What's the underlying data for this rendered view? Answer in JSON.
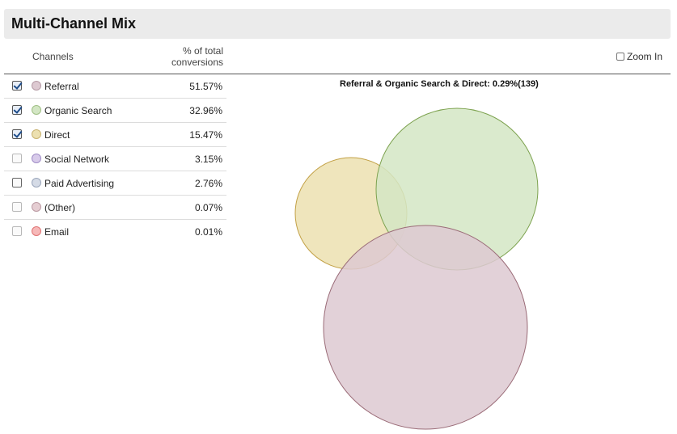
{
  "title": "Multi-Channel Mix",
  "header": {
    "channels_label": "Channels",
    "pct_label_line1": "% of total",
    "pct_label_line2": "conversions",
    "zoom_label": "Zoom In"
  },
  "rows": [
    {
      "name": "Referral",
      "pct": "51.57%",
      "checked": true,
      "color": "#ddc9d1",
      "border": "#b59aa5"
    },
    {
      "name": "Organic Search",
      "pct": "32.96%",
      "checked": true,
      "color": "#d3e6c4",
      "border": "#9fbf84"
    },
    {
      "name": "Direct",
      "pct": "15.47%",
      "checked": true,
      "color": "#ece0b0",
      "border": "#c9b370"
    },
    {
      "name": "Social Network",
      "pct": "3.15%",
      "checked": false,
      "color": "#d8cbea",
      "border": "#9f8cc6"
    },
    {
      "name": "Paid Advertising",
      "pct": "2.76%",
      "checked": false,
      "color": "#d5dbe6",
      "border": "#9aa6bb"
    },
    {
      "name": "(Other)",
      "pct": "0.07%",
      "checked": false,
      "color": "#e5cdd2",
      "border": "#bb9aa3"
    },
    {
      "name": "Email",
      "pct": "0.01%",
      "checked": false,
      "color": "#f6b8b8",
      "border": "#e07373"
    }
  ],
  "venn": {
    "label": "Referral & Organic Search & Direct: 0.29%(139)",
    "circles": [
      {
        "name": "Referral",
        "value": 51.57,
        "fill": "#ddc9d1",
        "stroke": "#9a6b77"
      },
      {
        "name": "Organic Search",
        "value": 32.96,
        "fill": "#d3e6c4",
        "stroke": "#7da24f"
      },
      {
        "name": "Direct",
        "value": 15.47,
        "fill": "#ece0b0",
        "stroke": "#c2a045"
      }
    ]
  }
}
